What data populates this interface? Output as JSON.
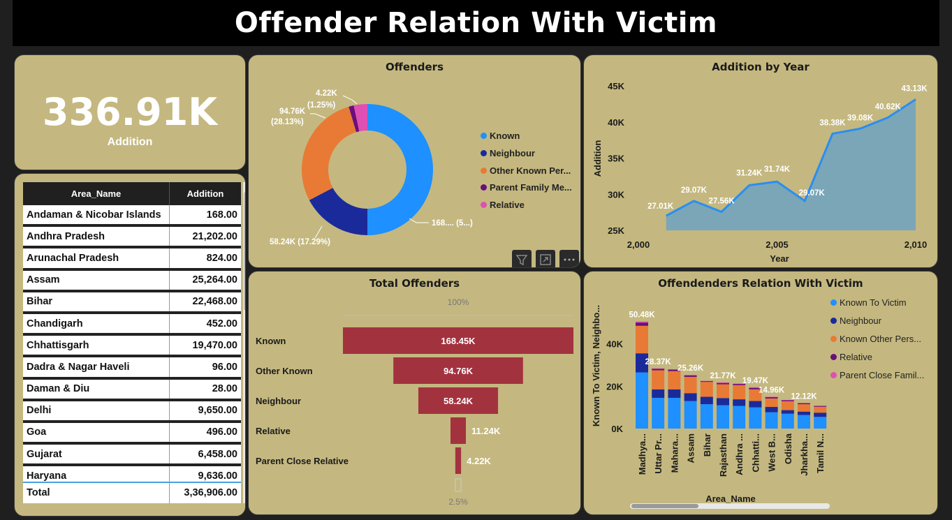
{
  "title": "Offender Relation With Victim",
  "kpi": {
    "value": "336.91K",
    "label": "Addition"
  },
  "table": {
    "headers": [
      "Area_Name",
      "Addition"
    ],
    "rows": [
      {
        "name": "Andaman & Nicobar Islands",
        "value": "168.00"
      },
      {
        "name": "Andhra Pradesh",
        "value": "21,202.00"
      },
      {
        "name": "Arunachal Pradesh",
        "value": "824.00"
      },
      {
        "name": "Assam",
        "value": "25,264.00"
      },
      {
        "name": "Bihar",
        "value": "22,468.00"
      },
      {
        "name": "Chandigarh",
        "value": "452.00"
      },
      {
        "name": "Chhattisgarh",
        "value": "19,470.00"
      },
      {
        "name": "Dadra & Nagar Haveli",
        "value": "96.00"
      },
      {
        "name": "Daman & Diu",
        "value": "28.00"
      },
      {
        "name": "Delhi",
        "value": "9,650.00"
      },
      {
        "name": "Goa",
        "value": "496.00"
      },
      {
        "name": "Gujarat",
        "value": "6,458.00"
      },
      {
        "name": "Haryana",
        "value": "9,636.00"
      }
    ],
    "total": {
      "name": "Total",
      "value": "3,36,906.00"
    }
  },
  "colors": {
    "panel": "#c4b880",
    "known": "#1e90ff",
    "neighbour": "#1b2a9a",
    "other_known": "#e87a35",
    "parent_family": "#6a0f7a",
    "relative": "#e04fb4",
    "funnel": "#a3323f",
    "area_fill": "#7aa6b8",
    "area_line": "#2a8ef0"
  },
  "chart_data": [
    {
      "type": "pie",
      "title": "Offenders",
      "legend": [
        "Known",
        "Neighbour",
        "Other Known Per...",
        "Parent Family Me...",
        "Relative"
      ],
      "values": [
        168.45,
        58.24,
        94.76,
        4.22,
        11.24
      ],
      "labels": {
        "known": "168.... (5...)",
        "neighbour": "58.24K (17.29%)",
        "other_known_1": "94.76K",
        "other_known_2": "(28.13%)",
        "small_1": "4.22K",
        "small_2": "(1.25%)"
      }
    },
    {
      "type": "area",
      "title": "Addition by Year",
      "xlabel": "Year",
      "ylabel": "Addition",
      "x": [
        2001,
        2002,
        2003,
        2004,
        2005,
        2006,
        2007,
        2008,
        2009,
        2010
      ],
      "values": [
        27.01,
        29.07,
        27.56,
        31.24,
        31.74,
        29.07,
        38.38,
        39.08,
        40.62,
        43.13
      ],
      "data_labels": [
        "27.01K",
        "29.07K",
        "27.56K",
        "31.24K",
        "31.74K",
        "29.07K",
        "38.38K",
        "39.08K",
        "40.62K",
        "43.13K"
      ],
      "y_ticks": [
        "25K",
        "30K",
        "35K",
        "40K",
        "45K"
      ],
      "x_ticks": [
        "2,000",
        "2,005",
        "2,010"
      ],
      "ylim": [
        25,
        45
      ],
      "xlim": [
        2000,
        2010
      ]
    },
    {
      "type": "bar",
      "title": "Total Offenders",
      "categories": [
        "Known",
        "Other Known",
        "Neighbour",
        "Relative",
        "Parent Close Relative"
      ],
      "values": [
        168.45,
        94.76,
        58.24,
        11.24,
        4.22
      ],
      "data_labels": [
        "168.45K",
        "94.76K",
        "58.24K",
        "11.24K",
        "4.22K"
      ],
      "top_label": "100%",
      "bottom_label": "2.5%"
    },
    {
      "type": "bar",
      "title": "Offendenders Relation With Victim",
      "xlabel": "Area_Name",
      "ylabel": "Known To Victim, Neighbo...",
      "categories": [
        "Madhya...",
        "Uttar Pr...",
        "Mahara...",
        "Assam",
        "Bihar",
        "Rajasthan",
        "Andhra ...",
        "Chhatti...",
        "West B...",
        "Odisha",
        "Jharkha...",
        "Tamil N..."
      ],
      "totals_labels": [
        "50.48K",
        "28.37K",
        "",
        "25.26K",
        "",
        "21.77K",
        "",
        "19.47K",
        "14.96K",
        "",
        "12.12K",
        ""
      ],
      "series": [
        {
          "name": "Known To Victim",
          "values": [
            26.5,
            14.5,
            14.5,
            13.0,
            11.5,
            11.0,
            10.7,
            10.0,
            7.7,
            7.0,
            6.4,
            5.5
          ]
        },
        {
          "name": "Neighbour",
          "values": [
            9.0,
            4.0,
            4.0,
            3.7,
            3.5,
            3.4,
            3.1,
            3.0,
            2.5,
            1.7,
            1.6,
            2.0
          ]
        },
        {
          "name": "Known Other Pers...",
          "values": [
            13.0,
            9.0,
            8.6,
            7.7,
            7.0,
            6.5,
            6.7,
            5.5,
            4.0,
            4.2,
            3.5,
            2.8
          ]
        },
        {
          "name": "Relative",
          "values": [
            1.5,
            0.7,
            0.7,
            0.7,
            0.4,
            0.6,
            0.6,
            0.7,
            0.6,
            0.5,
            0.5,
            0.4
          ]
        },
        {
          "name": "Parent Close Famil...",
          "values": [
            0.5,
            0.2,
            0.2,
            0.2,
            0.1,
            0.3,
            0.1,
            0.3,
            0.2,
            0.1,
            0.1,
            0.1
          ]
        }
      ],
      "y_ticks": [
        "0K",
        "20K",
        "40K"
      ],
      "ylim": [
        0,
        55
      ]
    }
  ]
}
